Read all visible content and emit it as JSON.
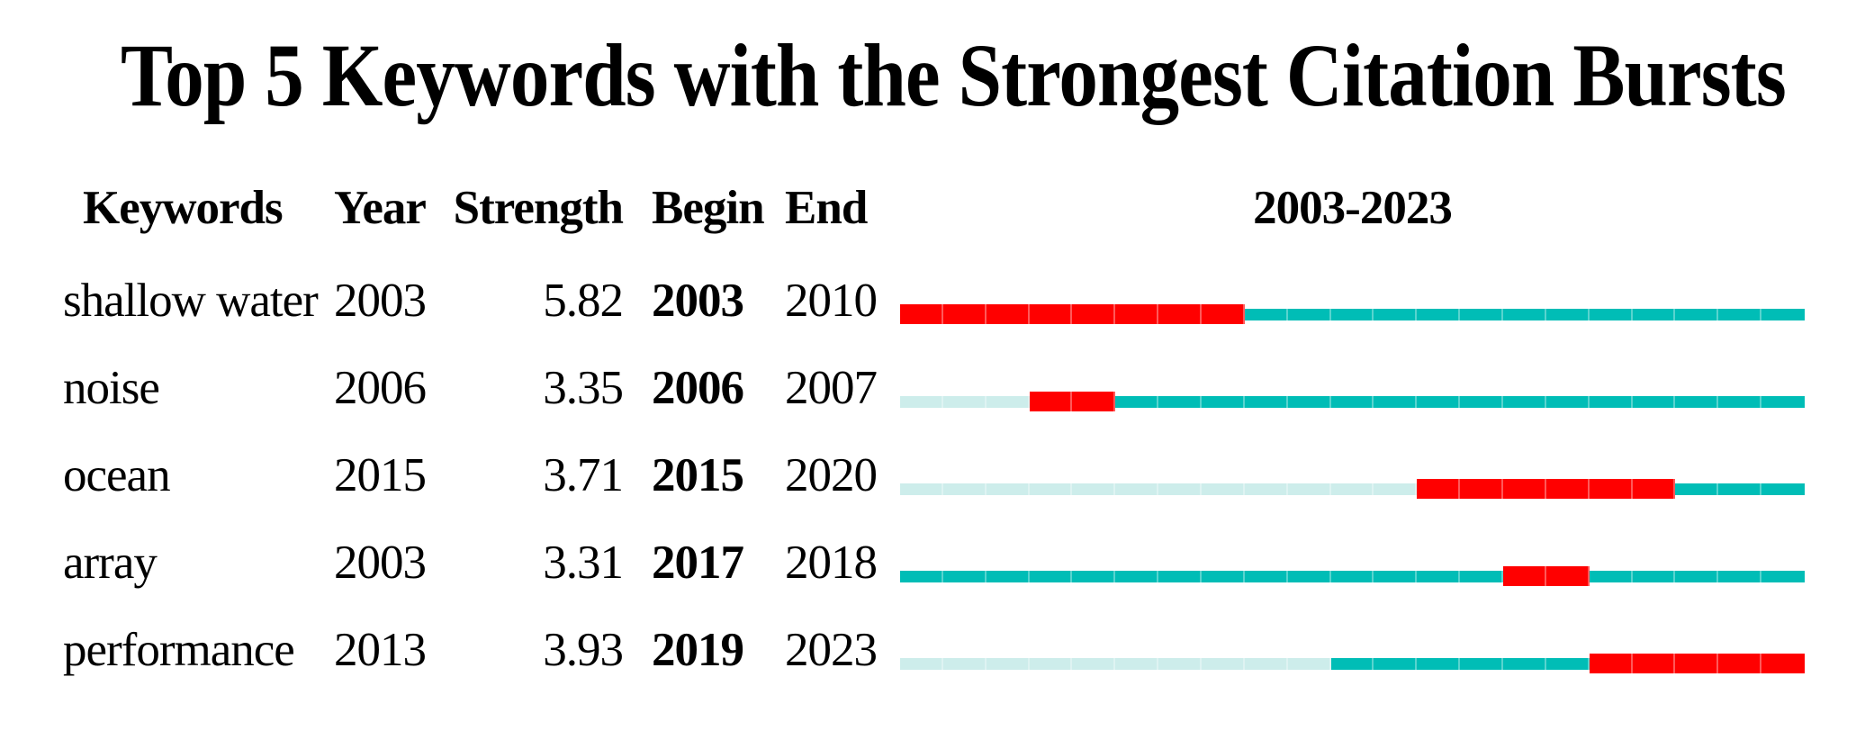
{
  "title": "Top 5 Keywords with the Strongest Citation Bursts",
  "chart_data": {
    "type": "bar",
    "variant": "citespace-citation-burst-timeline",
    "title": "Top 5 Keywords with the Strongest Citation Bursts",
    "timeline_label": "2003-2023",
    "year_range": [
      2003,
      2023
    ],
    "columns": [
      "Keywords",
      "Year",
      "Strength",
      "Begin",
      "End"
    ],
    "rows": [
      {
        "keyword": "shallow water",
        "year": 2003,
        "strength": "5.82",
        "begin": 2003,
        "end": 2010
      },
      {
        "keyword": "noise",
        "year": 2006,
        "strength": "3.35",
        "begin": 2006,
        "end": 2007
      },
      {
        "keyword": "ocean",
        "year": 2015,
        "strength": "3.71",
        "begin": 2015,
        "end": 2020
      },
      {
        "keyword": "array",
        "year": 2003,
        "strength": "3.31",
        "begin": 2017,
        "end": 2018
      },
      {
        "keyword": "performance",
        "year": 2013,
        "strength": "3.93",
        "begin": 2019,
        "end": 2023
      }
    ],
    "colors": {
      "burst": "#FF0000",
      "active": "#00BDB6",
      "pre_appearance": "#CDEDEB"
    },
    "legend_position": "none",
    "grid": false,
    "bar_semantics": {
      "burst": "years within the citation burst interval (Begin–End)",
      "active": "years after keyword first appearance, outside burst",
      "pre_appearance": "timeline years before keyword first appearance"
    }
  }
}
